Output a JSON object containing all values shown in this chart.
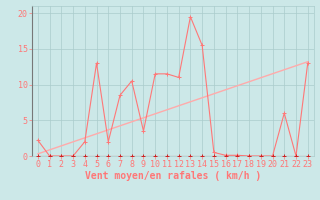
{
  "bg_color": "#cce8e8",
  "grid_color": "#aacccc",
  "line_color_main": "#ff7777",
  "line_color_zero": "#cc2222",
  "line_color_trend": "#ffaaaa",
  "xlabel": "Vent moyen/en rafales ( km/h )",
  "ylabel_ticks": [
    0,
    5,
    10,
    15,
    20
  ],
  "xlim": [
    -0.5,
    23.5
  ],
  "ylim": [
    0,
    21
  ],
  "xticks": [
    0,
    1,
    2,
    3,
    4,
    5,
    6,
    7,
    8,
    9,
    10,
    11,
    12,
    13,
    14,
    15,
    16,
    17,
    18,
    19,
    20,
    21,
    22,
    23
  ],
  "series1_x": [
    0,
    1,
    2,
    3,
    4,
    5,
    6,
    7,
    8,
    9,
    10,
    11,
    12,
    13,
    14,
    15,
    16,
    17,
    18,
    19,
    20,
    21,
    22,
    23
  ],
  "series1_y": [
    2.2,
    0.0,
    0.0,
    0.0,
    2.0,
    13.0,
    2.0,
    8.5,
    10.5,
    3.5,
    11.5,
    11.5,
    11.0,
    19.5,
    15.5,
    0.5,
    0.1,
    0.1,
    0.0,
    0.0,
    0.0,
    6.0,
    0.0,
    13.0
  ],
  "series2_y": [
    0.0,
    0.0,
    0.0,
    0.0,
    0.0,
    0.0,
    0.0,
    0.0,
    0.0,
    0.0,
    0.0,
    0.0,
    0.0,
    0.0,
    0.0,
    0.0,
    0.0,
    0.0,
    0.0,
    0.0,
    0.0,
    0.0,
    0.0,
    0.0
  ],
  "trend_x": [
    0,
    23
  ],
  "trend_y": [
    0.3,
    13.2
  ],
  "marker_size": 2.5,
  "font_size_label": 7,
  "font_size_tick": 6
}
